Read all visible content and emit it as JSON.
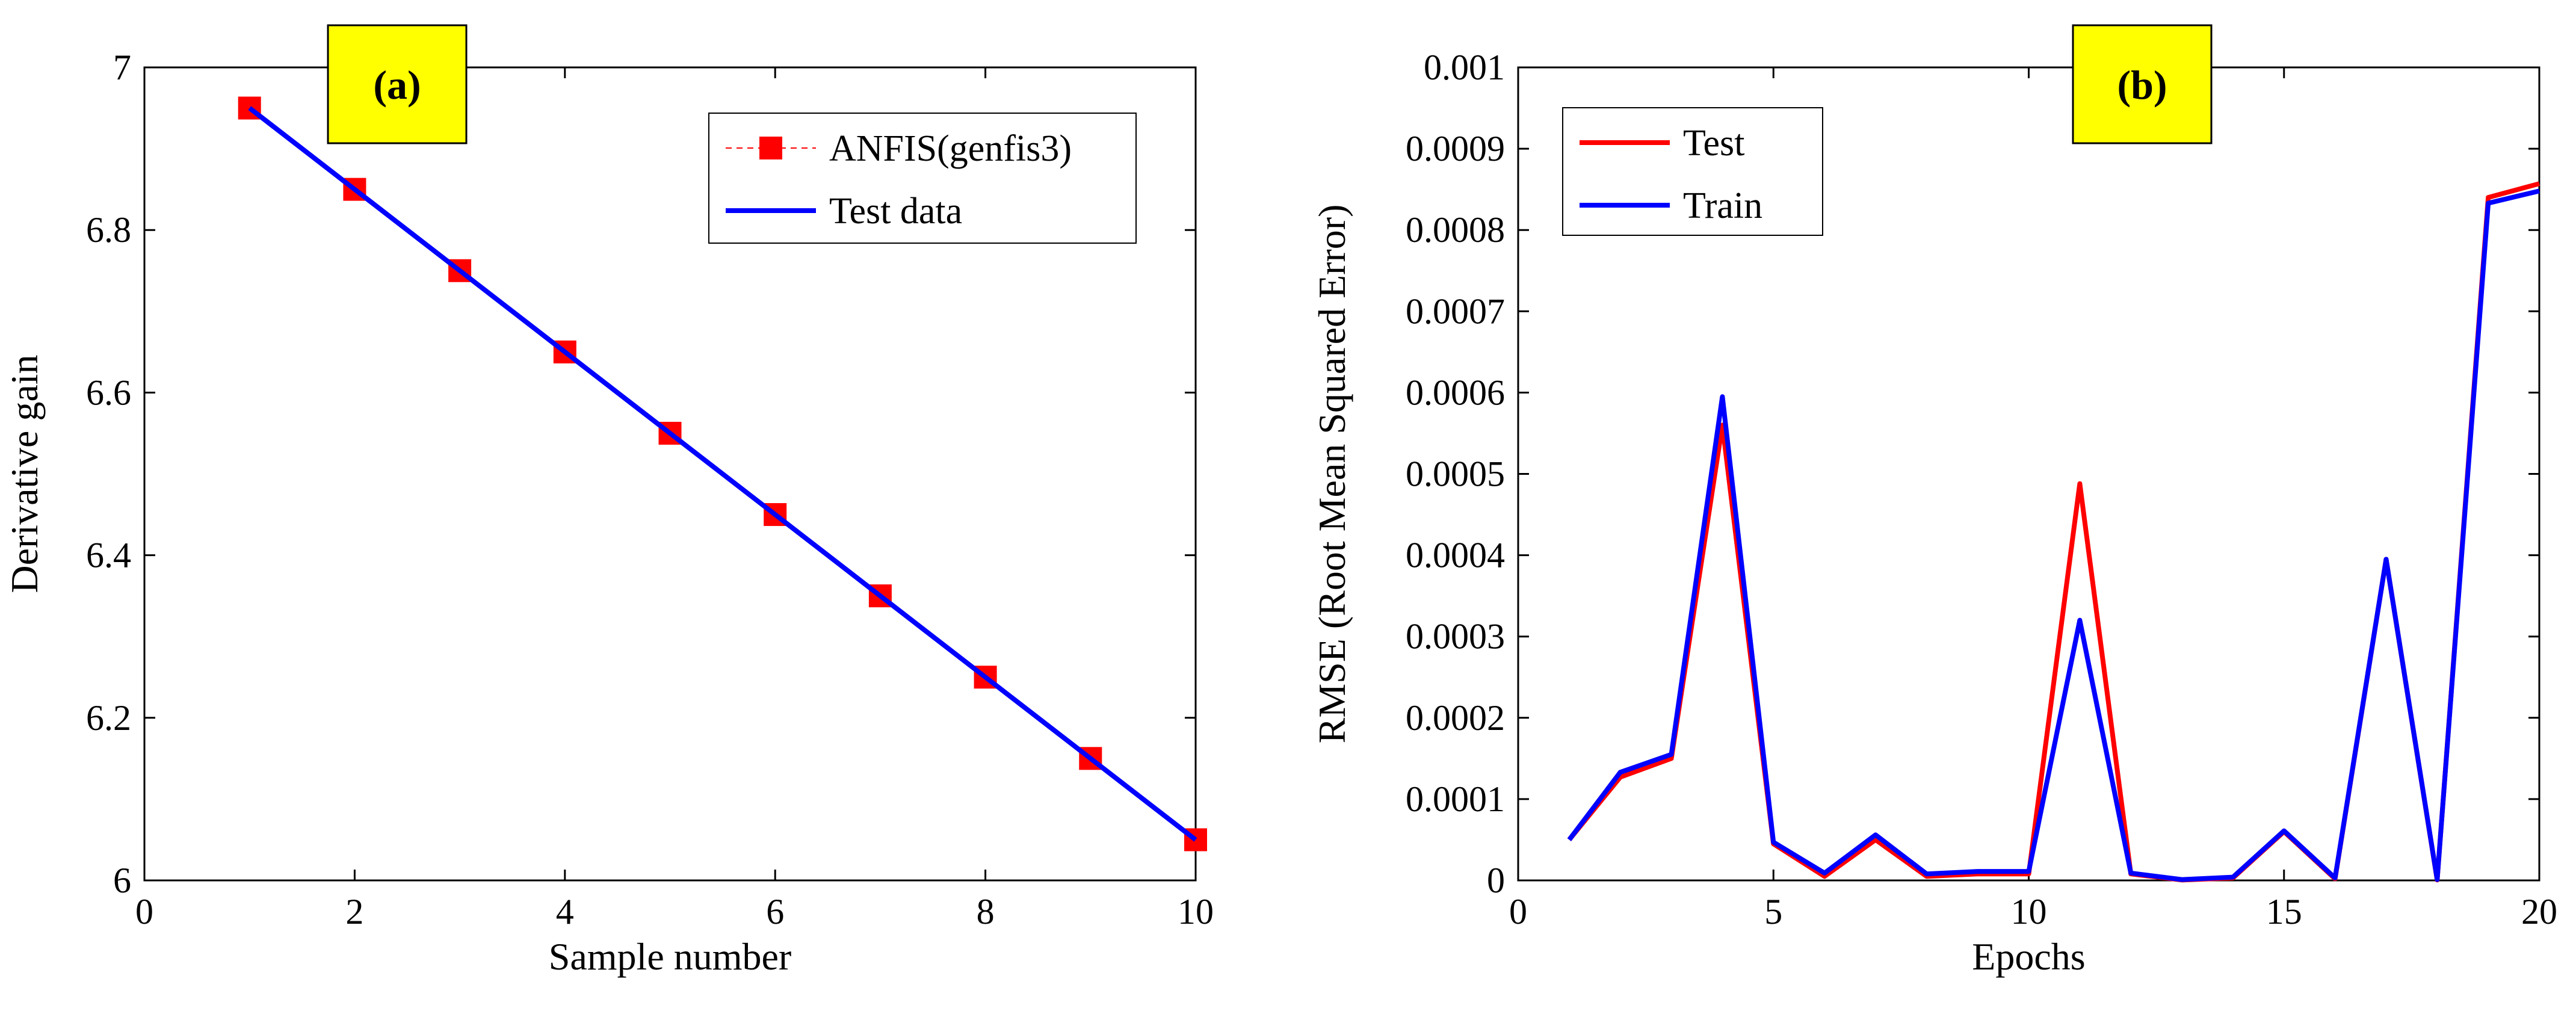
{
  "chart_data": [
    {
      "type": "line",
      "panel_label": "(a)",
      "xlabel": "Sample number",
      "ylabel": "Derivative gain",
      "xlim": [
        0,
        10
      ],
      "ylim": [
        6,
        7
      ],
      "xticks": [
        0,
        2,
        4,
        6,
        8,
        10
      ],
      "yticks": [
        6,
        6.2,
        6.4,
        6.6,
        6.8,
        7
      ],
      "ytick_labels": [
        "6",
        "6.2",
        "6.4",
        "6.6",
        "6.8",
        "7"
      ],
      "legend_position": "top-right",
      "x": [
        1,
        2,
        3,
        4,
        5,
        6,
        7,
        8,
        9,
        10
      ],
      "series": [
        {
          "name": "ANFIS(genfis3)",
          "style": "marker",
          "color": "#ff0000",
          "values": [
            6.95,
            6.85,
            6.75,
            6.65,
            6.55,
            6.45,
            6.35,
            6.25,
            6.15,
            6.05
          ]
        },
        {
          "name": "Test data",
          "style": "line",
          "color": "#0000ff",
          "values": [
            6.95,
            6.85,
            6.75,
            6.65,
            6.55,
            6.45,
            6.35,
            6.25,
            6.15,
            6.05
          ]
        }
      ]
    },
    {
      "type": "line",
      "panel_label": "(b)",
      "xlabel": "Epochs",
      "ylabel": "RMSE (Root Mean Squared Error)",
      "xlim": [
        0,
        20
      ],
      "ylim": [
        0,
        0.001
      ],
      "xticks": [
        0,
        5,
        10,
        15,
        20
      ],
      "yticks": [
        0,
        0.0001,
        0.0002,
        0.0003,
        0.0004,
        0.0005,
        0.0006,
        0.0007,
        0.0008,
        0.0009,
        0.001
      ],
      "ytick_labels": [
        "0",
        "0.0001",
        "0.0002",
        "0.0003",
        "0.0004",
        "0.0005",
        "0.0006",
        "0.0007",
        "0.0008",
        "0.0009",
        "0.001"
      ],
      "legend_position": "top-left",
      "x": [
        1,
        2,
        3,
        4,
        5,
        6,
        7,
        8,
        9,
        10,
        11,
        12,
        13,
        14,
        15,
        16,
        17,
        18,
        19,
        20
      ],
      "series": [
        {
          "name": "Test",
          "style": "line",
          "color": "#ff0000",
          "values": [
            5e-05,
            0.000127,
            0.00015,
            0.00056,
            4.5e-05,
            5e-06,
            5e-05,
            5e-06,
            8e-06,
            8e-06,
            0.000488,
            8e-06,
            5e-07,
            3e-06,
            6e-05,
            2e-06,
            0.000395,
            5e-07,
            0.00084,
            0.000857
          ]
        },
        {
          "name": "Train",
          "style": "line",
          "color": "#0000ff",
          "values": [
            5e-05,
            0.000133,
            0.000155,
            0.000595,
            4.7e-05,
            9e-06,
            5.6e-05,
            8e-06,
            1.1e-05,
            1.1e-05,
            0.00032,
            9e-06,
            1e-06,
            4e-06,
            6.1e-05,
            3e-06,
            0.000395,
            1e-06,
            0.000833,
            0.000848
          ]
        }
      ]
    }
  ]
}
